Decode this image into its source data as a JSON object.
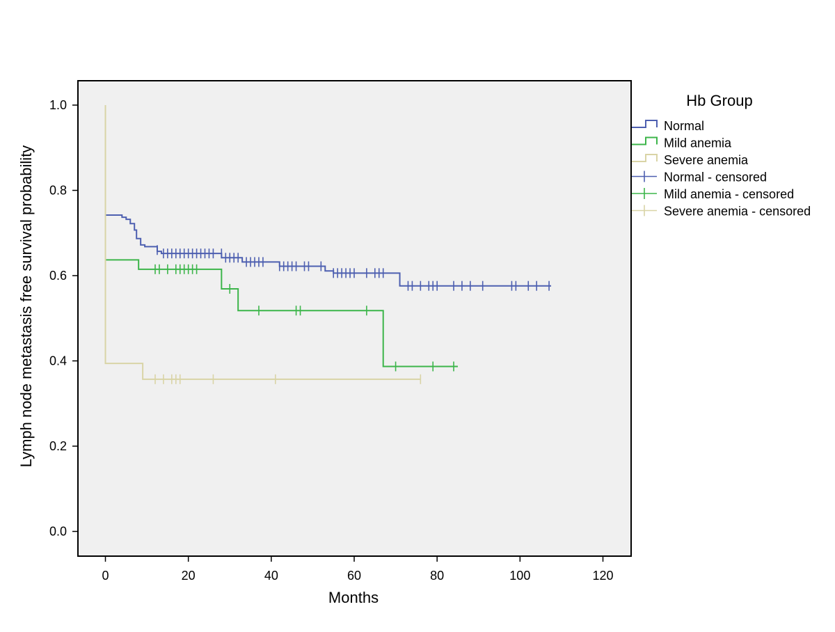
{
  "chart_data": {
    "type": "line",
    "subtype": "kaplan-meier",
    "title": "",
    "xlabel": "Months",
    "ylabel": "Lymph node metastasis free survival probability",
    "xlim": [
      -6.5,
      126
    ],
    "ylim": [
      -0.06,
      1.06
    ],
    "xticks": [
      0,
      20,
      40,
      60,
      80,
      100,
      120
    ],
    "yticks": [
      0.0,
      0.2,
      0.4,
      0.6,
      0.8,
      1.0
    ],
    "ytick_labels": [
      "0.0",
      "0.2",
      "0.4",
      "0.6",
      "0.8",
      "1.0"
    ],
    "background": "#f0f0f0",
    "legend": {
      "title": "Hb Group",
      "placement": "right",
      "entries": [
        {
          "label": "Normal",
          "kind": "line",
          "color": "#4d5fb0"
        },
        {
          "label": "Mild anemia",
          "kind": "line",
          "color": "#3cb54a"
        },
        {
          "label": "Severe anemia",
          "kind": "line",
          "color": "#d9d4a6"
        },
        {
          "label": "Normal - censored",
          "kind": "censor",
          "color": "#4d5fb0"
        },
        {
          "label": "Mild anemia - censored",
          "kind": "censor",
          "color": "#3cb54a"
        },
        {
          "label": "Severe anemia - censored",
          "kind": "censor",
          "color": "#d9d4a6"
        }
      ]
    },
    "series": [
      {
        "name": "Normal",
        "color": "#4d5fb0",
        "steps": [
          [
            0,
            0.742
          ],
          [
            4,
            0.737
          ],
          [
            5,
            0.732
          ],
          [
            6,
            0.722
          ],
          [
            7,
            0.707
          ],
          [
            7.5,
            0.687
          ],
          [
            8.5,
            0.672
          ],
          [
            9.5,
            0.668
          ],
          [
            12.5,
            0.657
          ],
          [
            13.5,
            0.652
          ],
          [
            28,
            0.642
          ],
          [
            33,
            0.632
          ],
          [
            42,
            0.622
          ],
          [
            53,
            0.611
          ],
          [
            55,
            0.606
          ],
          [
            71,
            0.576
          ],
          [
            107.5,
            0.576
          ]
        ],
        "censored": [
          [
            12.5,
            0.66
          ],
          [
            14,
            0.652
          ],
          [
            15,
            0.652
          ],
          [
            16,
            0.652
          ],
          [
            17,
            0.652
          ],
          [
            18,
            0.652
          ],
          [
            19,
            0.652
          ],
          [
            20,
            0.652
          ],
          [
            21,
            0.652
          ],
          [
            22,
            0.652
          ],
          [
            23,
            0.652
          ],
          [
            24,
            0.652
          ],
          [
            25,
            0.652
          ],
          [
            26,
            0.652
          ],
          [
            28,
            0.652
          ],
          [
            29,
            0.642
          ],
          [
            30,
            0.642
          ],
          [
            31,
            0.642
          ],
          [
            32,
            0.642
          ],
          [
            34,
            0.632
          ],
          [
            35,
            0.632
          ],
          [
            36,
            0.632
          ],
          [
            37,
            0.632
          ],
          [
            38,
            0.632
          ],
          [
            42,
            0.622
          ],
          [
            43,
            0.622
          ],
          [
            44,
            0.622
          ],
          [
            45,
            0.622
          ],
          [
            46,
            0.622
          ],
          [
            48,
            0.622
          ],
          [
            49,
            0.622
          ],
          [
            52,
            0.622
          ],
          [
            55,
            0.606
          ],
          [
            56,
            0.606
          ],
          [
            57,
            0.606
          ],
          [
            58,
            0.606
          ],
          [
            59,
            0.606
          ],
          [
            60,
            0.606
          ],
          [
            63,
            0.606
          ],
          [
            65,
            0.606
          ],
          [
            66,
            0.606
          ],
          [
            67,
            0.606
          ],
          [
            73,
            0.576
          ],
          [
            74,
            0.576
          ],
          [
            76,
            0.576
          ],
          [
            78,
            0.576
          ],
          [
            79,
            0.576
          ],
          [
            80,
            0.576
          ],
          [
            84,
            0.576
          ],
          [
            86,
            0.576
          ],
          [
            88,
            0.576
          ],
          [
            91,
            0.576
          ],
          [
            98,
            0.576
          ],
          [
            99,
            0.576
          ],
          [
            102,
            0.576
          ],
          [
            104,
            0.576
          ],
          [
            107,
            0.576
          ]
        ]
      },
      {
        "name": "Mild anemia",
        "color": "#3cb54a",
        "steps": [
          [
            0,
            0.637
          ],
          [
            8,
            0.615
          ],
          [
            28,
            0.569
          ],
          [
            32,
            0.518
          ],
          [
            67,
            0.387
          ],
          [
            85,
            0.387
          ]
        ],
        "censored": [
          [
            12,
            0.615
          ],
          [
            13,
            0.615
          ],
          [
            15,
            0.615
          ],
          [
            17,
            0.615
          ],
          [
            18,
            0.615
          ],
          [
            19,
            0.615
          ],
          [
            20,
            0.615
          ],
          [
            21,
            0.615
          ],
          [
            22,
            0.615
          ],
          [
            30,
            0.569
          ],
          [
            37,
            0.518
          ],
          [
            46,
            0.518
          ],
          [
            47,
            0.518
          ],
          [
            63,
            0.518
          ],
          [
            70,
            0.387
          ],
          [
            79,
            0.387
          ],
          [
            84,
            0.387
          ]
        ]
      },
      {
        "name": "Severe anemia",
        "color": "#d9d4a6",
        "steps": [
          [
            0,
            1.0
          ],
          [
            0,
            0.394
          ],
          [
            9,
            0.357
          ],
          [
            76,
            0.357
          ]
        ],
        "censored": [
          [
            12,
            0.357
          ],
          [
            14,
            0.357
          ],
          [
            16,
            0.357
          ],
          [
            17,
            0.357
          ],
          [
            18,
            0.357
          ],
          [
            26,
            0.357
          ],
          [
            41,
            0.357
          ],
          [
            76,
            0.357
          ]
        ]
      }
    ]
  }
}
